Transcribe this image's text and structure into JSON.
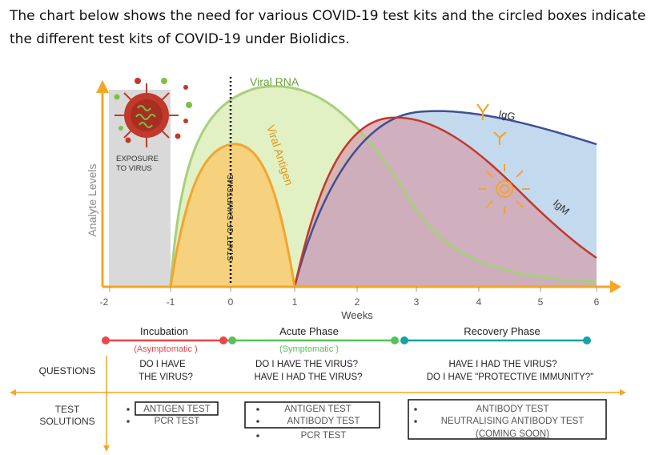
{
  "intro_text": "The chart below shows the need for various COVID-19 test kits and the circled boxes indicate the different test kits of COVID-19 under Biolidics.",
  "chart": {
    "y_axis_label": "Analyte Levels",
    "x_axis_label": "Weeks",
    "x_ticks": [
      "-2",
      "-1",
      "0",
      "1",
      "2",
      "3",
      "4",
      "5",
      "6"
    ],
    "exposure_label_1": "EXPOSURE",
    "exposure_label_2": "TO VIRUS",
    "symptoms_label": "START OF SYMPTOMS",
    "viral_rna_label": "Viral RNA",
    "viral_antigen_label": "Viral Antigen",
    "igg_label": "IgG",
    "igm_label": "IgM",
    "colors": {
      "exposure_box": "#d9d9d9",
      "viral_rna": "#a8cf7c",
      "viral_antigen": "#f2a531",
      "igg": "#3f4f93",
      "igm": "#c0392b",
      "axis": "#f5a623",
      "virus": "#c0392b"
    }
  },
  "timeline": {
    "phases": [
      {
        "name": "Incubation",
        "sub": "(Asymptomatic )"
      },
      {
        "name": "Acute Phase",
        "sub": "(Symptomatic )"
      },
      {
        "name": "Recovery Phase",
        "sub": ""
      }
    ],
    "colors": {
      "incubation": "#e8474c",
      "acute": "#56c15a",
      "recovery": "#13a3a5"
    }
  },
  "questions": {
    "row_label": "QUESTIONS",
    "incubation": [
      "DO I HAVE",
      "THE VIRUS?"
    ],
    "acute": [
      "DO I HAVE THE VIRUS?",
      "HAVE I HAD THE VIRUS?"
    ],
    "recovery": [
      "HAVE I HAD THE VIRUS?",
      "DO I HAVE \"PROTECTIVE IMMUNITY?\""
    ]
  },
  "test_solutions": {
    "row_label_1": "TEST",
    "row_label_2": "SOLUTIONS",
    "incubation": [
      "ANTIGEN TEST",
      "PCR TEST"
    ],
    "acute": [
      "ANTIGEN TEST",
      "ANTIBODY TEST",
      "PCR TEST"
    ],
    "recovery": [
      "ANTIBODY TEST",
      "NEUTRALISING ANTIBODY TEST",
      "(COMING SOON)"
    ]
  }
}
